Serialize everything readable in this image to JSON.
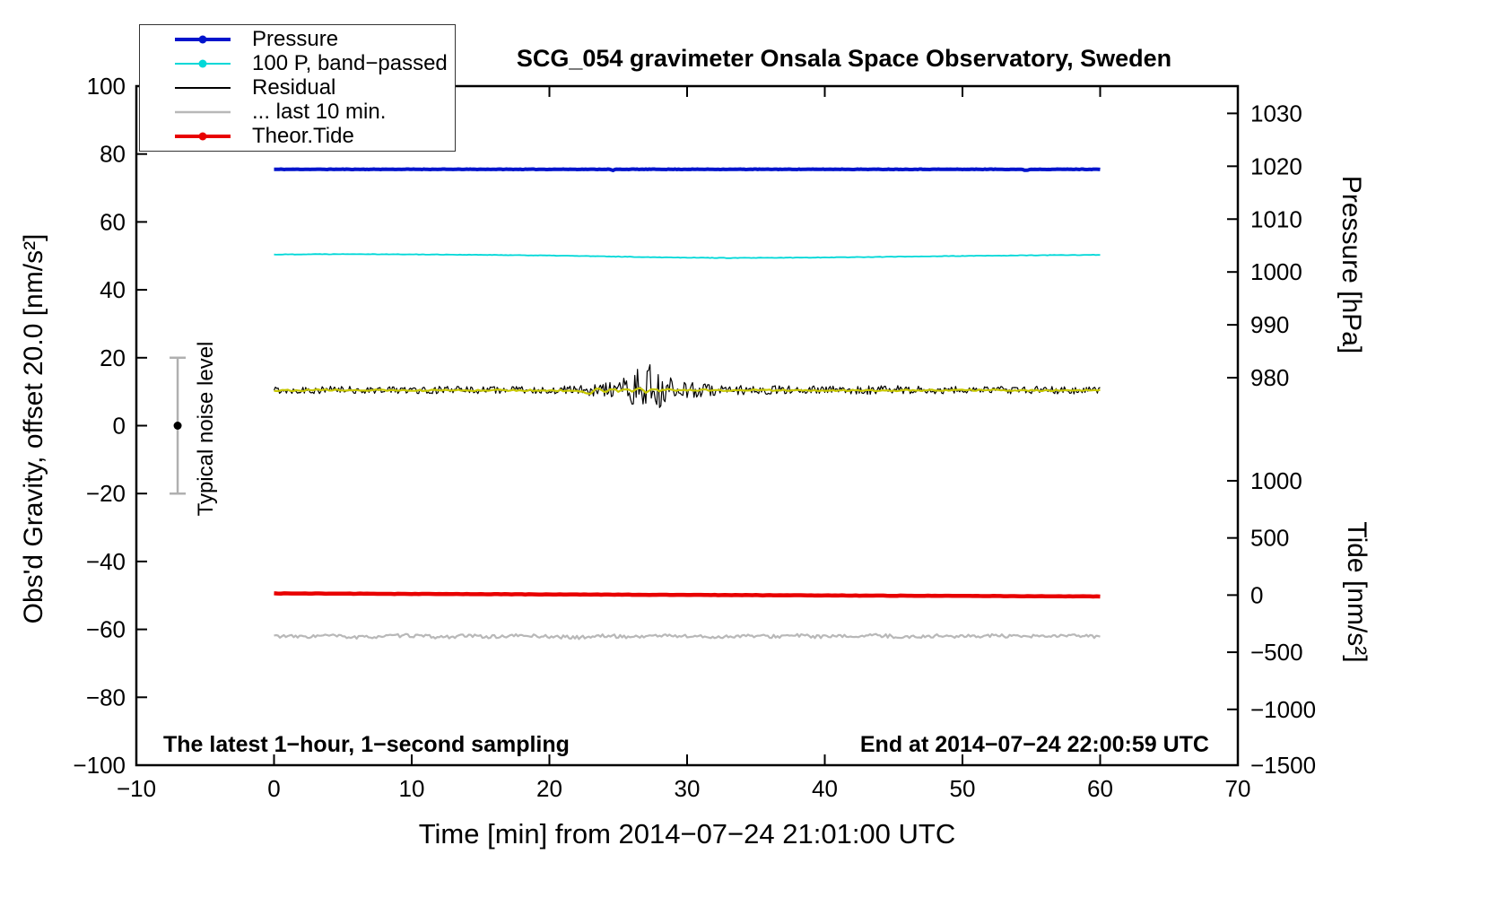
{
  "chart_data": {
    "type": "line",
    "title": "SCG_054 gravimeter Onsala Space Observatory, Sweden",
    "xlabel": "Time [min] from 2014−07−24 21:01:00 UTC",
    "ylabel_left": "Obs'd Gravity, offset 20.0 [nm/s²]",
    "ylabel_pressure": "Pressure [hPa]",
    "ylabel_tide": "Tide [nm/s²]",
    "notes": {
      "sampling": "The latest 1−hour, 1−second sampling",
      "end_time": "End at 2014−07−24 22:00:59 UTC",
      "noise": "Typical noise level"
    },
    "x_range": [
      -10,
      70
    ],
    "x_ticks": [
      -10,
      0,
      10,
      20,
      30,
      40,
      50,
      60,
      70
    ],
    "y_left_range": [
      -100,
      100
    ],
    "y_left_ticks": [
      -100,
      -80,
      -60,
      -40,
      -20,
      0,
      20,
      40,
      60,
      80,
      100
    ],
    "grid": false,
    "legend_position": "top-left",
    "pressure_axis": {
      "ticks": [
        1030,
        1020,
        1010,
        1000,
        990,
        980
      ],
      "value_ref": 1020,
      "gravity_ref": 76.4,
      "gravity_per_unit": 1.557
    },
    "tide_axis": {
      "ticks": [
        1000,
        500,
        0,
        -500,
        -1000,
        -1500
      ],
      "value_ref": 0,
      "gravity_ref": -49.9,
      "gravity_per_unit": 0.03366
    },
    "noise_bar": {
      "x": -7,
      "center": 0,
      "half_range": 20
    },
    "legend": [
      {
        "label": "Pressure",
        "color": "#0014cc",
        "marker": true,
        "width": 4
      },
      {
        "label": "100 P, band−passed",
        "color": "#00d8d8",
        "marker": true,
        "width": 2
      },
      {
        "label": "Residual",
        "color": "#000000",
        "marker": false,
        "width": 2
      },
      {
        "label": "... last 10 min.",
        "color": "#b8b8b8",
        "marker": false,
        "width": 2.5
      },
      {
        "label": "Theor.Tide",
        "color": "#e80000",
        "marker": true,
        "width": 4
      }
    ],
    "series": [
      {
        "name": "pressure",
        "label": "Pressure",
        "color": "#0014cc",
        "width": 4,
        "seed": 11,
        "noise_freq": 8,
        "noise_amp": 0.07,
        "x": [
          0,
          24.4,
          24.6,
          24.8,
          54.2,
          54.6,
          55,
          60
        ],
        "v": [
          75.5,
          75.5,
          75.1,
          75.5,
          75.5,
          75.2,
          75.5,
          75.5
        ],
        "unit": "left-axis nm/s2 (approx 1019 hPa)"
      },
      {
        "name": "pressure-band-passed",
        "label": "100 P, band−passed",
        "color": "#00d8d8",
        "width": 1.8,
        "seed": 22,
        "noise_freq": 6,
        "noise_amp": 0.07,
        "x": [
          0,
          3,
          6,
          9,
          12,
          15,
          18,
          21,
          24,
          27,
          30,
          33,
          36,
          40,
          44,
          48,
          52,
          56,
          60
        ],
        "v": [
          50.4,
          50.5,
          50.55,
          50.45,
          50.4,
          50.3,
          50.2,
          50.05,
          49.85,
          49.65,
          49.5,
          49.38,
          49.42,
          49.55,
          49.7,
          49.9,
          50.05,
          50.2,
          50.3
        ]
      },
      {
        "name": "residual-last-10-min",
        "label": "... last 10 min.",
        "color": "#b8b8b8",
        "width": 2.2,
        "seed": 33,
        "noise_freq": 7,
        "noise_amp": 0.5,
        "x": [
          0,
          2,
          4,
          6,
          8,
          10,
          12,
          14,
          16,
          18,
          20,
          22,
          24,
          26,
          28,
          30,
          32,
          34,
          36,
          38,
          40,
          42,
          44,
          46,
          48,
          50,
          52,
          54,
          56,
          58,
          60
        ],
        "v": [
          -61.9,
          -62.2,
          -61.8,
          -62.4,
          -62.0,
          -61.8,
          -62.3,
          -61.9,
          -62.2,
          -61.8,
          -62.1,
          -62.4,
          -61.9,
          -62.2,
          -61.8,
          -62.0,
          -62.3,
          -61.9,
          -62.1,
          -61.8,
          -62.2,
          -62.0,
          -61.8,
          -62.3,
          -61.9,
          -62.1,
          -61.8,
          -62.2,
          -62.0,
          -61.9,
          -62.1
        ]
      },
      {
        "name": "theor-tide",
        "label": "Theor.Tide",
        "color": "#e80000",
        "width": 4.5,
        "seed": 44,
        "noise_freq": 4,
        "noise_amp": 0.05,
        "x": [
          0,
          60
        ],
        "v": [
          -49.4,
          -50.3
        ],
        "unit": "tide axis approx 0 nm/s2"
      },
      {
        "name": "residual",
        "label": "Residual",
        "color": "#000000",
        "width": 1.2,
        "seed": 55,
        "noise_freq": 10,
        "x": [
          0,
          60
        ],
        "v": [
          10.5,
          10.5
        ],
        "amp_x": [
          0,
          20,
          22,
          23,
          24,
          25,
          26,
          27,
          28,
          29,
          30,
          31,
          33,
          35,
          40,
          45,
          50,
          55,
          60
        ],
        "amp_v": [
          1.1,
          1.1,
          1.3,
          1.8,
          2.3,
          3.2,
          4.5,
          8.5,
          6.0,
          3.4,
          2.5,
          2.0,
          1.5,
          1.3,
          1.2,
          1.3,
          1.1,
          1.2,
          1.1
        ],
        "note": "noise burst (seismic event) around 23-30 min"
      },
      {
        "name": "residual-smoothed",
        "label": "",
        "color": "#c8c800",
        "width": 2.2,
        "seed": 66,
        "noise_freq": 5,
        "noise_amp": 0.22,
        "x": [
          0,
          5,
          10,
          15,
          20,
          22,
          23,
          23.5,
          24,
          24.5,
          25,
          25.5,
          26,
          26.5,
          27,
          27.5,
          28,
          28.5,
          29,
          30,
          32,
          35,
          40,
          45,
          50,
          55,
          60
        ],
        "v": [
          10.4,
          10.5,
          10.35,
          10.45,
          10.4,
          10.3,
          9.4,
          11.2,
          9.9,
          11.0,
          10.1,
          10.9,
          10.0,
          11.1,
          9.8,
          11.0,
          10.2,
          10.8,
          10.3,
          10.5,
          10.4,
          10.45,
          10.4,
          10.35,
          10.45,
          10.4,
          10.4
        ]
      }
    ]
  }
}
